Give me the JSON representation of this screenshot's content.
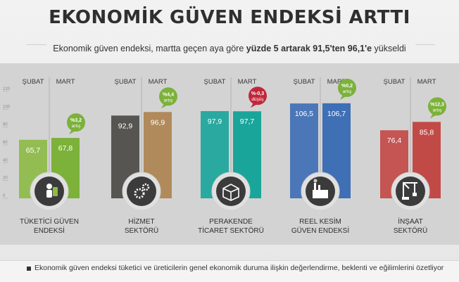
{
  "header": {
    "title": "EKONOMİK GÜVEN ENDEKSİ ARTTI",
    "subtitle_pre": "Ekonomik güven endeksi, martta geçen aya göre ",
    "subtitle_bold": "yüzde 5 artarak 91,5'ten 96,1'e",
    "subtitle_post": " yükseldi"
  },
  "footer": {
    "note": "Ekonomik güven endeksi tüketici ve üreticilerin genel ekonomik duruma ilişkin değerlendirme, beklenti ve eğilimlerini özetliyor"
  },
  "chart_data": {
    "type": "bar",
    "period_labels": [
      "ŞUBAT",
      "MART"
    ],
    "y_ticks": [
      0,
      20,
      40,
      60,
      80,
      100,
      120
    ],
    "ylim": [
      0,
      120
    ],
    "groups": [
      {
        "label": [
          "TÜKETİCİ GÜVEN",
          "ENDEKSİ"
        ],
        "icon": "consumer-icon",
        "color_prev": "#8dbb47",
        "color_curr": "#7cb13a",
        "values": [
          65.7,
          67.8
        ],
        "value_labels": [
          "65,7",
          "67,8"
        ],
        "change": [
          "%3,2",
          "artış"
        ],
        "change_color": "#7cb13a"
      },
      {
        "label": [
          "HİZMET",
          "SEKTÖRÜ"
        ],
        "icon": "gears-icon",
        "color_prev": "#4b4a47",
        "color_curr": "#b08a5a",
        "values": [
          92.9,
          96.9
        ],
        "value_labels": [
          "92,9",
          "96,9"
        ],
        "change": [
          "%4,4",
          "artış"
        ],
        "change_color": "#7cb13a"
      },
      {
        "label": [
          "PERAKENDE",
          "TİCARET SEKTÖRÜ"
        ],
        "icon": "box-icon",
        "color_prev": "#1aa59a",
        "color_curr": "#1aa59a",
        "values": [
          97.9,
          97.7
        ],
        "value_labels": [
          "97,9",
          "97,7"
        ],
        "change": [
          "%-0,3",
          "düşüş"
        ],
        "change_color": "#c0283a"
      },
      {
        "label": [
          "REEL KESİM",
          "GÜVEN ENDEKSİ"
        ],
        "icon": "factory-icon",
        "color_prev": "#3f6fb5",
        "color_curr": "#3f6fb5",
        "values": [
          106.5,
          106.7
        ],
        "value_labels": [
          "106,5",
          "106,7"
        ],
        "change": [
          "%0,2",
          "artış"
        ],
        "change_color": "#7cb13a"
      },
      {
        "label": [
          "İNŞAAT",
          "SEKTÖRÜ"
        ],
        "icon": "crane-icon",
        "color_prev": "#c24a46",
        "color_curr": "#c24a46",
        "values": [
          76.4,
          85.8
        ],
        "value_labels": [
          "76,4",
          "85,8"
        ],
        "change": [
          "%12,3",
          "artış"
        ],
        "change_color": "#7cb13a"
      }
    ]
  }
}
